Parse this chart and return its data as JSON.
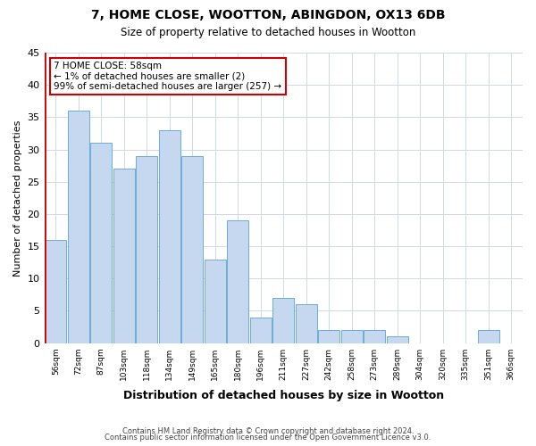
{
  "title": "7, HOME CLOSE, WOOTTON, ABINGDON, OX13 6DB",
  "subtitle": "Size of property relative to detached houses in Wootton",
  "xlabel": "Distribution of detached houses by size in Wootton",
  "ylabel": "Number of detached properties",
  "footnote1": "Contains HM Land Registry data © Crown copyright and database right 2024.",
  "footnote2": "Contains public sector information licensed under the Open Government Licence v3.0.",
  "bins": [
    "56sqm",
    "72sqm",
    "87sqm",
    "103sqm",
    "118sqm",
    "134sqm",
    "149sqm",
    "165sqm",
    "180sqm",
    "196sqm",
    "211sqm",
    "227sqm",
    "242sqm",
    "258sqm",
    "273sqm",
    "289sqm",
    "304sqm",
    "320sqm",
    "335sqm",
    "351sqm",
    "366sqm"
  ],
  "values": [
    16,
    36,
    31,
    27,
    29,
    33,
    29,
    13,
    19,
    4,
    7,
    6,
    2,
    2,
    2,
    1,
    0,
    0,
    0,
    2,
    0
  ],
  "bar_color": "#c5d8f0",
  "bar_edge_color": "#6baed6",
  "annotation_box_color": "#ffffff",
  "annotation_border_color": "#cc0000",
  "annotation_line1": "7 HOME CLOSE: 58sqm",
  "annotation_line2": "← 1% of detached houses are smaller (2)",
  "annotation_line3": "99% of semi-detached houses are larger (257) →",
  "ylim": [
    0,
    45
  ],
  "yticks": [
    0,
    5,
    10,
    15,
    20,
    25,
    30,
    35,
    40,
    45
  ],
  "background_color": "#ffffff",
  "grid_color": "#d0d8e8"
}
